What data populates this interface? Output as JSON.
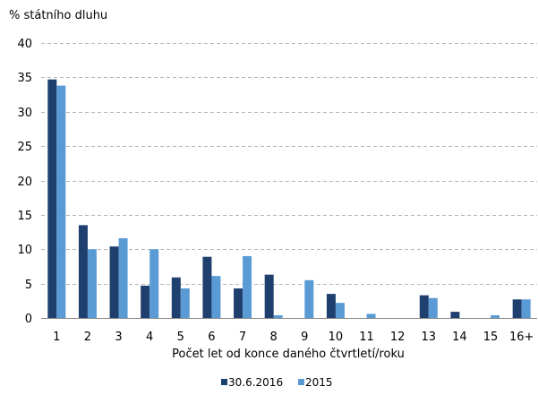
{
  "chart_data": {
    "type": "bar",
    "title": "",
    "ylabel": "% státního dluhu",
    "xlabel": "Počet let od konce daného čtvrtletí/roku",
    "ylim": [
      0,
      40
    ],
    "yticks": [
      "0",
      "5",
      "10",
      "15",
      "20",
      "25",
      "30",
      "35",
      "40"
    ],
    "categories": [
      "1",
      "2",
      "3",
      "4",
      "5",
      "6",
      "7",
      "8",
      "9",
      "10",
      "11",
      "12",
      "13",
      "14",
      "15",
      "16+"
    ],
    "series": [
      {
        "name": "30.6.2016",
        "color": "#1F3F6E",
        "values": [
          34.7,
          13.5,
          10.4,
          4.7,
          5.9,
          8.9,
          4.3,
          6.3,
          0.0,
          3.5,
          0.0,
          0.0,
          3.3,
          0.9,
          0.0,
          2.7
        ]
      },
      {
        "name": "2015",
        "color": "#5B9BD5",
        "values": [
          33.8,
          10.0,
          11.6,
          10.0,
          4.3,
          6.1,
          9.0,
          0.4,
          5.5,
          2.2,
          0.6,
          0.0,
          2.9,
          0.0,
          0.4,
          2.7
        ]
      }
    ],
    "grid": true,
    "legend_position": "bottom-center"
  }
}
